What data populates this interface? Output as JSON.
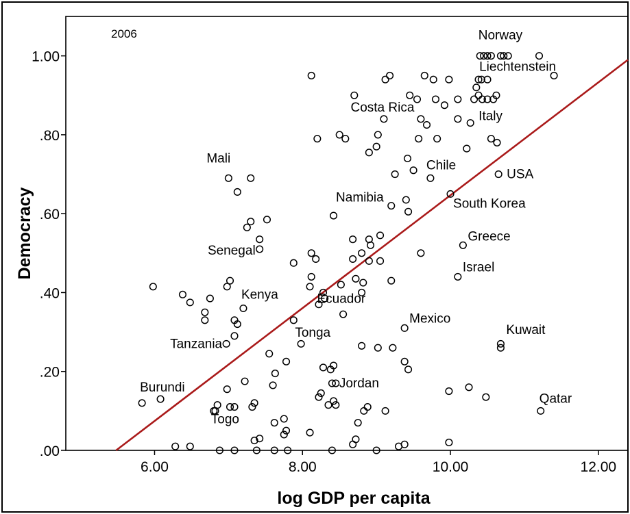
{
  "chart_data": {
    "type": "scatter",
    "title": "2006",
    "xlabel": "log GDP per capita",
    "ylabel": "Democracy",
    "xlim": [
      4.8,
      12.4
    ],
    "ylim": [
      0,
      1.1
    ],
    "x_ticks": [
      {
        "value": 6,
        "label": "6.00"
      },
      {
        "value": 8,
        "label": "8.00"
      },
      {
        "value": 10,
        "label": "10.00"
      },
      {
        "value": 12,
        "label": "12.00"
      }
    ],
    "y_ticks": [
      {
        "value": 0,
        "label": ".00"
      },
      {
        "value": 0.2,
        "label": ".20"
      },
      {
        "value": 0.4,
        "label": ".40"
      },
      {
        "value": 0.6,
        "label": ".60"
      },
      {
        "value": 0.8,
        "label": ".80"
      },
      {
        "value": 1.0,
        "label": "1.00"
      }
    ],
    "fit_line": {
      "x": [
        5.48,
        12.4
      ],
      "y": [
        0.0,
        0.99
      ],
      "color": "#aa1a1a"
    },
    "marker_color": "#000000",
    "labeled_points": [
      {
        "name": "Norway",
        "x": 10.72,
        "y": 1.0
      },
      {
        "name": "Liechtenstein",
        "x": 11.4,
        "y": 0.95
      },
      {
        "name": "Costa Rica",
        "x": 9.1,
        "y": 0.84
      },
      {
        "name": "Italy",
        "x": 10.27,
        "y": 0.83
      },
      {
        "name": "Mali",
        "x": 7.0,
        "y": 0.69
      },
      {
        "name": "Chile",
        "x": 9.73,
        "y": 0.69
      },
      {
        "name": "USA",
        "x": 10.65,
        "y": 0.7
      },
      {
        "name": "Namibia",
        "x": 9.2,
        "y": 0.62
      },
      {
        "name": "South Korea",
        "x": 10.0,
        "y": 0.65
      },
      {
        "name": "Greece",
        "x": 10.17,
        "y": 0.52
      },
      {
        "name": "Senegal",
        "x": 7.42,
        "y": 0.51
      },
      {
        "name": "Israel",
        "x": 10.1,
        "y": 0.44
      },
      {
        "name": "Kenya",
        "x": 7.2,
        "y": 0.36
      },
      {
        "name": "Ecuador",
        "x": 8.28,
        "y": 0.4
      },
      {
        "name": "Mexico",
        "x": 9.38,
        "y": 0.31
      },
      {
        "name": "Tonga",
        "x": 7.88,
        "y": 0.33
      },
      {
        "name": "Tanzania",
        "x": 6.97,
        "y": 0.27
      },
      {
        "name": "Kuwait",
        "x": 10.68,
        "y": 0.26
      },
      {
        "name": "Burundi",
        "x": 5.83,
        "y": 0.12
      },
      {
        "name": "Jordan",
        "x": 8.45,
        "y": 0.17
      },
      {
        "name": "Qatar",
        "x": 11.22,
        "y": 0.1
      },
      {
        "name": "Togo",
        "x": 6.8,
        "y": 0.1
      }
    ],
    "points": [
      {
        "x": 10.4,
        "y": 1.0
      },
      {
        "x": 10.45,
        "y": 1.0
      },
      {
        "x": 10.5,
        "y": 1.0
      },
      {
        "x": 10.55,
        "y": 1.0
      },
      {
        "x": 10.68,
        "y": 1.0
      },
      {
        "x": 10.78,
        "y": 1.0
      },
      {
        "x": 11.2,
        "y": 1.0
      },
      {
        "x": 8.12,
        "y": 0.95
      },
      {
        "x": 9.12,
        "y": 0.94
      },
      {
        "x": 9.18,
        "y": 0.95
      },
      {
        "x": 9.65,
        "y": 0.95
      },
      {
        "x": 9.77,
        "y": 0.94
      },
      {
        "x": 9.98,
        "y": 0.94
      },
      {
        "x": 10.38,
        "y": 0.94
      },
      {
        "x": 10.42,
        "y": 0.94
      },
      {
        "x": 10.5,
        "y": 0.94
      },
      {
        "x": 10.35,
        "y": 0.92
      },
      {
        "x": 10.38,
        "y": 0.9
      },
      {
        "x": 8.7,
        "y": 0.9
      },
      {
        "x": 9.45,
        "y": 0.9
      },
      {
        "x": 9.55,
        "y": 0.89
      },
      {
        "x": 9.8,
        "y": 0.89
      },
      {
        "x": 9.92,
        "y": 0.875
      },
      {
        "x": 10.1,
        "y": 0.89
      },
      {
        "x": 10.32,
        "y": 0.89
      },
      {
        "x": 10.43,
        "y": 0.89
      },
      {
        "x": 10.5,
        "y": 0.89
      },
      {
        "x": 10.58,
        "y": 0.89
      },
      {
        "x": 10.62,
        "y": 0.9
      },
      {
        "x": 9.6,
        "y": 0.84
      },
      {
        "x": 9.68,
        "y": 0.825
      },
      {
        "x": 10.1,
        "y": 0.84
      },
      {
        "x": 8.5,
        "y": 0.8
      },
      {
        "x": 8.58,
        "y": 0.79
      },
      {
        "x": 8.2,
        "y": 0.79
      },
      {
        "x": 9.02,
        "y": 0.8
      },
      {
        "x": 9.0,
        "y": 0.77
      },
      {
        "x": 8.9,
        "y": 0.755
      },
      {
        "x": 9.57,
        "y": 0.79
      },
      {
        "x": 9.82,
        "y": 0.79
      },
      {
        "x": 10.22,
        "y": 0.765
      },
      {
        "x": 10.55,
        "y": 0.79
      },
      {
        "x": 10.63,
        "y": 0.78
      },
      {
        "x": 9.42,
        "y": 0.74
      },
      {
        "x": 9.5,
        "y": 0.71
      },
      {
        "x": 9.25,
        "y": 0.7
      },
      {
        "x": 7.3,
        "y": 0.69
      },
      {
        "x": 7.12,
        "y": 0.655
      },
      {
        "x": 9.4,
        "y": 0.635
      },
      {
        "x": 9.43,
        "y": 0.605
      },
      {
        "x": 8.42,
        "y": 0.595
      },
      {
        "x": 7.3,
        "y": 0.58
      },
      {
        "x": 7.52,
        "y": 0.585
      },
      {
        "x": 7.25,
        "y": 0.565
      },
      {
        "x": 7.42,
        "y": 0.535
      },
      {
        "x": 8.68,
        "y": 0.535
      },
      {
        "x": 8.9,
        "y": 0.535
      },
      {
        "x": 9.05,
        "y": 0.545
      },
      {
        "x": 8.92,
        "y": 0.52
      },
      {
        "x": 8.8,
        "y": 0.5
      },
      {
        "x": 9.6,
        "y": 0.5
      },
      {
        "x": 8.12,
        "y": 0.5
      },
      {
        "x": 8.18,
        "y": 0.485
      },
      {
        "x": 7.88,
        "y": 0.475
      },
      {
        "x": 8.68,
        "y": 0.485
      },
      {
        "x": 8.9,
        "y": 0.48
      },
      {
        "x": 9.05,
        "y": 0.48
      },
      {
        "x": 9.2,
        "y": 0.43
      },
      {
        "x": 8.12,
        "y": 0.44
      },
      {
        "x": 8.72,
        "y": 0.435
      },
      {
        "x": 8.82,
        "y": 0.425
      },
      {
        "x": 8.52,
        "y": 0.42
      },
      {
        "x": 8.1,
        "y": 0.415
      },
      {
        "x": 8.8,
        "y": 0.4
      },
      {
        "x": 8.3,
        "y": 0.385
      },
      {
        "x": 8.22,
        "y": 0.37
      },
      {
        "x": 8.55,
        "y": 0.345
      },
      {
        "x": 5.98,
        "y": 0.415
      },
      {
        "x": 6.38,
        "y": 0.395
      },
      {
        "x": 6.48,
        "y": 0.375
      },
      {
        "x": 6.75,
        "y": 0.385
      },
      {
        "x": 6.98,
        "y": 0.415
      },
      {
        "x": 7.02,
        "y": 0.43
      },
      {
        "x": 6.68,
        "y": 0.35
      },
      {
        "x": 6.68,
        "y": 0.33
      },
      {
        "x": 7.08,
        "y": 0.33
      },
      {
        "x": 7.12,
        "y": 0.32
      },
      {
        "x": 7.08,
        "y": 0.29
      },
      {
        "x": 7.98,
        "y": 0.27
      },
      {
        "x": 7.55,
        "y": 0.245
      },
      {
        "x": 7.78,
        "y": 0.225
      },
      {
        "x": 8.8,
        "y": 0.265
      },
      {
        "x": 9.02,
        "y": 0.26
      },
      {
        "x": 9.22,
        "y": 0.26
      },
      {
        "x": 9.38,
        "y": 0.225
      },
      {
        "x": 9.43,
        "y": 0.205
      },
      {
        "x": 7.63,
        "y": 0.195
      },
      {
        "x": 7.6,
        "y": 0.165
      },
      {
        "x": 7.22,
        "y": 0.175
      },
      {
        "x": 6.98,
        "y": 0.155
      },
      {
        "x": 8.28,
        "y": 0.21
      },
      {
        "x": 8.38,
        "y": 0.205
      },
      {
        "x": 8.42,
        "y": 0.215
      },
      {
        "x": 8.4,
        "y": 0.17
      },
      {
        "x": 8.25,
        "y": 0.145
      },
      {
        "x": 8.22,
        "y": 0.135
      },
      {
        "x": 8.35,
        "y": 0.115
      },
      {
        "x": 8.42,
        "y": 0.125
      },
      {
        "x": 8.45,
        "y": 0.115
      },
      {
        "x": 8.83,
        "y": 0.1
      },
      {
        "x": 8.88,
        "y": 0.11
      },
      {
        "x": 8.75,
        "y": 0.07
      },
      {
        "x": 9.12,
        "y": 0.1
      },
      {
        "x": 9.98,
        "y": 0.15
      },
      {
        "x": 10.25,
        "y": 0.16
      },
      {
        "x": 10.48,
        "y": 0.135
      },
      {
        "x": 10.68,
        "y": 0.27
      },
      {
        "x": 6.08,
        "y": 0.13
      },
      {
        "x": 7.02,
        "y": 0.11
      },
      {
        "x": 7.08,
        "y": 0.11
      },
      {
        "x": 7.32,
        "y": 0.11
      },
      {
        "x": 7.35,
        "y": 0.12
      },
      {
        "x": 6.82,
        "y": 0.1
      },
      {
        "x": 6.85,
        "y": 0.115
      },
      {
        "x": 7.62,
        "y": 0.07
      },
      {
        "x": 7.75,
        "y": 0.08
      },
      {
        "x": 7.78,
        "y": 0.05
      },
      {
        "x": 7.75,
        "y": 0.04
      },
      {
        "x": 7.35,
        "y": 0.025
      },
      {
        "x": 7.42,
        "y": 0.03
      },
      {
        "x": 8.1,
        "y": 0.045
      },
      {
        "x": 8.68,
        "y": 0.015
      },
      {
        "x": 8.72,
        "y": 0.028
      },
      {
        "x": 9.3,
        "y": 0.01
      },
      {
        "x": 9.38,
        "y": 0.015
      },
      {
        "x": 9.98,
        "y": 0.02
      },
      {
        "x": 6.28,
        "y": 0.01
      },
      {
        "x": 6.48,
        "y": 0.01
      },
      {
        "x": 6.88,
        "y": 0.0
      },
      {
        "x": 7.08,
        "y": 0.0
      },
      {
        "x": 7.38,
        "y": 0.0
      },
      {
        "x": 7.62,
        "y": 0.0
      },
      {
        "x": 7.8,
        "y": 0.0
      },
      {
        "x": 8.4,
        "y": 0.0
      },
      {
        "x": 9.0,
        "y": 0.0
      }
    ]
  }
}
